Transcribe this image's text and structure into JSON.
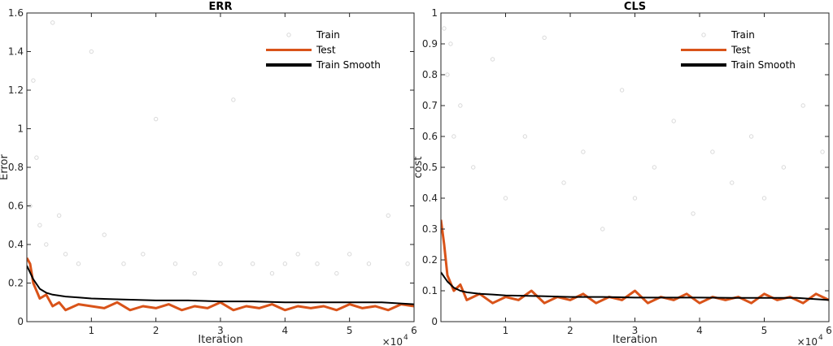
{
  "chart_data": [
    {
      "type": "line",
      "title": "ERR",
      "xlabel": "Iteration",
      "ylabel": "Error",
      "x_multiplier": "×10",
      "x_exponent": "4",
      "xlim": [
        0,
        6
      ],
      "ylim": [
        0,
        1.6
      ],
      "xticks": [
        1,
        2,
        3,
        4,
        5,
        6
      ],
      "xtick_labels": [
        "1",
        "2",
        "3",
        "4",
        "5",
        "6"
      ],
      "yticks": [
        0,
        0.2,
        0.4,
        0.6,
        0.8,
        1,
        1.2,
        1.4,
        1.6
      ],
      "ytick_labels": [
        "0",
        "0.2",
        "0.4",
        "0.6",
        "0.8",
        "1",
        "1.2",
        "1.4",
        "1.6"
      ],
      "legend_position": "top-right",
      "series": [
        {
          "name": "Train",
          "kind": "scatter",
          "color": "#d9d9d9",
          "x": [
            0.05,
            0.1,
            0.15,
            0.2,
            0.3,
            0.4,
            0.5,
            0.6,
            0.8,
            1.0,
            1.2,
            1.5,
            1.8,
            2.0,
            2.3,
            2.6,
            3.0,
            3.2,
            3.5,
            3.8,
            4.0,
            4.2,
            4.5,
            4.8,
            5.0,
            5.3,
            5.6,
            5.9
          ],
          "y": [
            0.6,
            1.25,
            0.85,
            0.5,
            0.4,
            1.55,
            0.55,
            0.35,
            0.3,
            1.4,
            0.45,
            0.3,
            0.35,
            1.05,
            0.3,
            0.25,
            0.3,
            1.15,
            0.3,
            0.25,
            0.3,
            0.35,
            0.3,
            0.25,
            0.35,
            0.3,
            0.55,
            0.3
          ]
        },
        {
          "name": "Test",
          "kind": "line",
          "color": "#d95319",
          "x": [
            0.0,
            0.05,
            0.1,
            0.2,
            0.3,
            0.4,
            0.5,
            0.6,
            0.8,
            1.0,
            1.2,
            1.4,
            1.6,
            1.8,
            2.0,
            2.2,
            2.4,
            2.6,
            2.8,
            3.0,
            3.2,
            3.4,
            3.6,
            3.8,
            4.0,
            4.2,
            4.4,
            4.6,
            4.8,
            5.0,
            5.2,
            5.4,
            5.6,
            5.8,
            6.0
          ],
          "y": [
            0.33,
            0.3,
            0.2,
            0.12,
            0.14,
            0.08,
            0.1,
            0.06,
            0.09,
            0.08,
            0.07,
            0.1,
            0.06,
            0.08,
            0.07,
            0.09,
            0.06,
            0.08,
            0.07,
            0.1,
            0.06,
            0.08,
            0.07,
            0.09,
            0.06,
            0.08,
            0.07,
            0.08,
            0.06,
            0.09,
            0.07,
            0.08,
            0.06,
            0.09,
            0.08
          ]
        },
        {
          "name": "Train Smooth",
          "kind": "line",
          "color": "#000000",
          "x": [
            0.0,
            0.1,
            0.2,
            0.3,
            0.4,
            0.6,
            0.8,
            1.0,
            1.5,
            2.0,
            2.5,
            3.0,
            3.5,
            4.0,
            4.5,
            5.0,
            5.5,
            6.0
          ],
          "y": [
            0.29,
            0.22,
            0.17,
            0.15,
            0.14,
            0.13,
            0.125,
            0.12,
            0.115,
            0.11,
            0.11,
            0.105,
            0.105,
            0.1,
            0.1,
            0.1,
            0.1,
            0.09
          ]
        }
      ]
    },
    {
      "type": "line",
      "title": "CLS",
      "xlabel": "Iteration",
      "ylabel": "cost",
      "x_multiplier": "×10",
      "x_exponent": "4",
      "xlim": [
        0,
        6
      ],
      "ylim": [
        0,
        1
      ],
      "xticks": [
        1,
        2,
        3,
        4,
        5,
        6
      ],
      "xtick_labels": [
        "1",
        "2",
        "3",
        "4",
        "5",
        "6"
      ],
      "yticks": [
        0,
        0.1,
        0.2,
        0.3,
        0.4,
        0.5,
        0.6,
        0.7,
        0.8,
        0.9,
        1
      ],
      "ytick_labels": [
        "0",
        "0.1",
        "0.2",
        "0.3",
        "0.4",
        "0.5",
        "0.6",
        "0.7",
        "0.8",
        "0.9",
        "1"
      ],
      "legend_position": "top-right",
      "series": [
        {
          "name": "Train",
          "kind": "scatter",
          "color": "#d9d9d9",
          "x": [
            0.05,
            0.1,
            0.15,
            0.2,
            0.3,
            0.5,
            0.8,
            1.0,
            1.3,
            1.6,
            1.9,
            2.2,
            2.5,
            2.8,
            3.0,
            3.3,
            3.6,
            3.9,
            4.2,
            4.5,
            4.8,
            5.0,
            5.3,
            5.6,
            5.9
          ],
          "y": [
            0.95,
            0.8,
            0.9,
            0.6,
            0.7,
            0.5,
            0.85,
            0.4,
            0.6,
            0.92,
            0.45,
            0.55,
            0.3,
            0.75,
            0.4,
            0.5,
            0.65,
            0.35,
            0.55,
            0.45,
            0.6,
            0.4,
            0.5,
            0.7,
            0.55
          ]
        },
        {
          "name": "Test",
          "kind": "line",
          "color": "#d95319",
          "x": [
            0.0,
            0.05,
            0.1,
            0.2,
            0.3,
            0.4,
            0.6,
            0.8,
            1.0,
            1.2,
            1.4,
            1.6,
            1.8,
            2.0,
            2.2,
            2.4,
            2.6,
            2.8,
            3.0,
            3.2,
            3.4,
            3.6,
            3.8,
            4.0,
            4.2,
            4.4,
            4.6,
            4.8,
            5.0,
            5.2,
            5.4,
            5.6,
            5.8,
            6.0
          ],
          "y": [
            0.33,
            0.25,
            0.15,
            0.1,
            0.12,
            0.07,
            0.09,
            0.06,
            0.08,
            0.07,
            0.1,
            0.06,
            0.08,
            0.07,
            0.09,
            0.06,
            0.08,
            0.07,
            0.1,
            0.06,
            0.08,
            0.07,
            0.09,
            0.06,
            0.08,
            0.07,
            0.08,
            0.06,
            0.09,
            0.07,
            0.08,
            0.06,
            0.09,
            0.07
          ]
        },
        {
          "name": "Train Smooth",
          "kind": "line",
          "color": "#000000",
          "x": [
            0.0,
            0.1,
            0.2,
            0.3,
            0.4,
            0.6,
            0.8,
            1.0,
            1.5,
            2.0,
            2.5,
            3.0,
            3.5,
            4.0,
            4.5,
            5.0,
            5.5,
            6.0
          ],
          "y": [
            0.16,
            0.13,
            0.11,
            0.1,
            0.095,
            0.09,
            0.088,
            0.085,
            0.083,
            0.08,
            0.08,
            0.078,
            0.078,
            0.078,
            0.077,
            0.077,
            0.077,
            0.07
          ]
        }
      ]
    }
  ]
}
